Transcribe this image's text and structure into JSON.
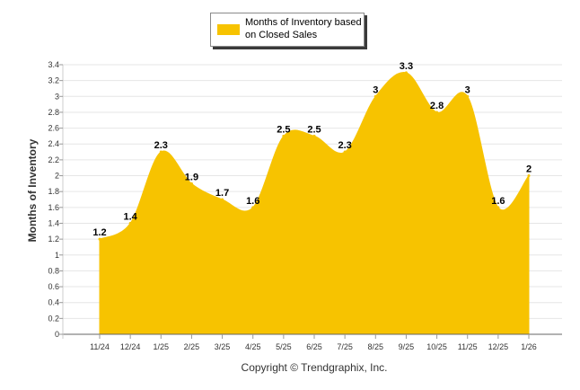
{
  "chart_data": {
    "type": "area",
    "ylabel": "Months of Inventory",
    "xlabel": "",
    "ylim": [
      0,
      3.4
    ],
    "ytick_step": 0.2,
    "grid": true,
    "color": "#F7C300",
    "legend_position": "top-center",
    "categories": [
      "11/24",
      "12/24",
      "1/25",
      "2/25",
      "3/25",
      "4/25",
      "5/25",
      "6/25",
      "7/25",
      "8/25",
      "9/25",
      "10/25",
      "11/25",
      "12/25",
      "1/26"
    ],
    "series": [
      {
        "name": "Months of Inventory based on Closed Sales",
        "values": [
          1.2,
          1.4,
          2.3,
          1.9,
          1.7,
          1.6,
          2.5,
          2.5,
          2.3,
          3,
          3.3,
          2.8,
          3,
          1.6,
          2
        ]
      }
    ]
  },
  "legend": {
    "label": "Months of Inventory based on Closed Sales"
  },
  "footer": {
    "copyright": "Copyright © Trendgraphix, Inc."
  }
}
